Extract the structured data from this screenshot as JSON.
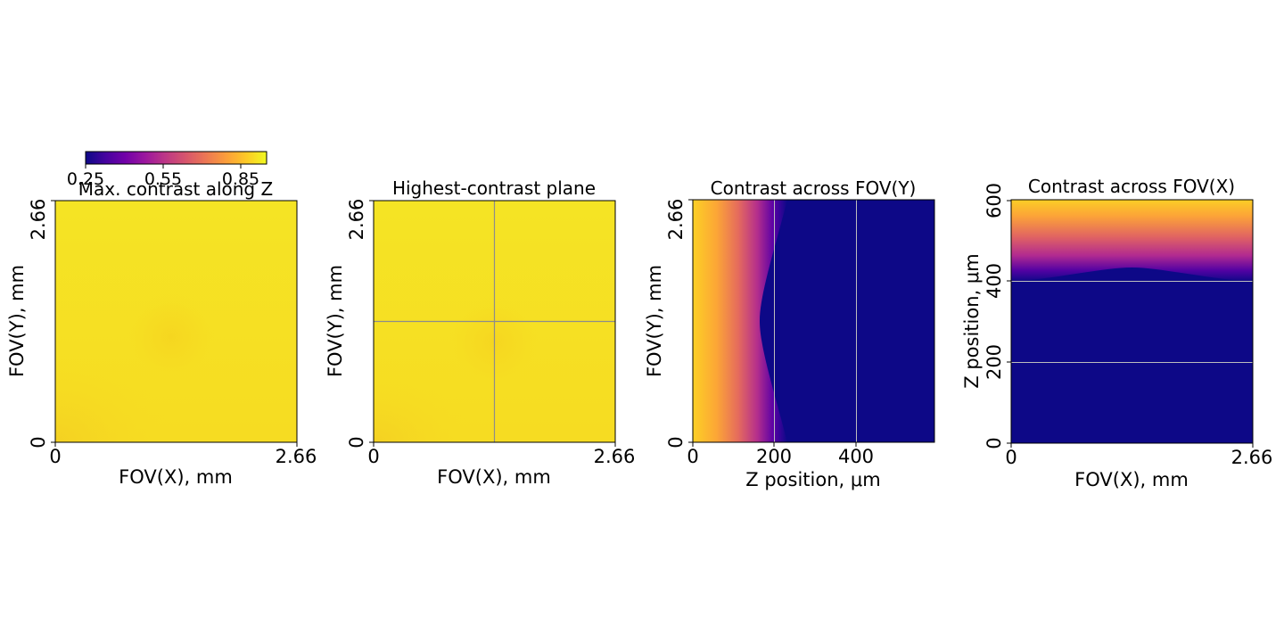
{
  "colors": {
    "cmap_stops": [
      "#0d0887",
      "#46039f",
      "#7201a8",
      "#9c179e",
      "#bd3786",
      "#d8576b",
      "#ed7953",
      "#fb9f3a",
      "#fdca26",
      "#f0f921"
    ],
    "grid_line": "#8c8c8c",
    "axis": "#000000"
  },
  "chart_data": [
    {
      "type": "heatmap",
      "title": "Max. contrast along Z",
      "xlabel": "FOV(X), mm",
      "ylabel": "FOV(Y), mm",
      "xlim": [
        0,
        2.66
      ],
      "ylim": [
        0,
        2.66
      ],
      "xticks": [
        "0",
        "2.66"
      ],
      "yticks": [
        "0",
        "2.66"
      ],
      "value_range": [
        0.9,
        0.97
      ],
      "colorbar": {
        "ticks": [
          "0.25",
          "0.55",
          "0.85"
        ],
        "range": [
          0.25,
          0.95
        ],
        "cmap": "plasma"
      }
    },
    {
      "type": "heatmap",
      "title": "Highest-contrast plane",
      "xlabel": "FOV(X), mm",
      "ylabel": "FOV(Y), mm",
      "xlim": [
        0,
        2.66
      ],
      "ylim": [
        0,
        2.66
      ],
      "xticks": [
        "0",
        "2.66"
      ],
      "yticks": [
        "0",
        "2.66"
      ],
      "value_range": [
        0.9,
        0.97
      ],
      "crosshair": {
        "x": 1.33,
        "y": 1.33
      }
    },
    {
      "type": "heatmap",
      "title": "Contrast across FOV(Y)",
      "xlabel": "Z position, μm",
      "ylabel": "FOV(Y), mm",
      "xlim": [
        0,
        590
      ],
      "ylim": [
        0,
        2.66
      ],
      "xticks": [
        "0",
        "200",
        "400"
      ],
      "yticks": [
        "0",
        "2.66"
      ],
      "marker_lines_x": [
        200,
        400
      ],
      "profile": "high contrast near Z=0, dropping to minimum by ~180 μm at center, ~200 μm at edges"
    },
    {
      "type": "heatmap",
      "title": "Contrast across FOV(X)",
      "xlabel": "FOV(X), mm",
      "ylabel": "Z position, μm",
      "xlim": [
        0,
        2.66
      ],
      "ylim": [
        0,
        605
      ],
      "xticks": [
        "0",
        "2.66"
      ],
      "yticks": [
        "0",
        "200",
        "400",
        "600"
      ],
      "marker_lines_y": [
        200,
        400
      ],
      "profile": "minimum contrast below ~410 μm, rising to maximum near 600 μm"
    }
  ]
}
